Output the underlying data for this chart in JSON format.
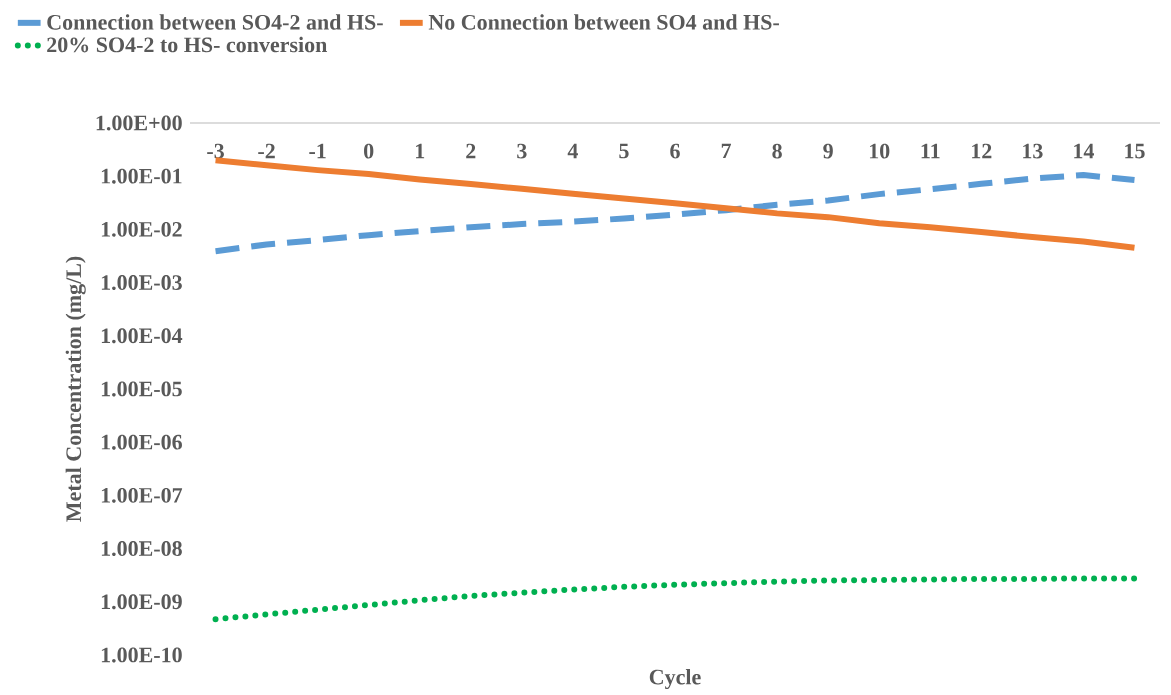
{
  "chart_data": {
    "type": "line",
    "xlabel": "Cycle",
    "ylabel": "Metal Concentration (mg/L)",
    "categories": [
      "-3",
      "-2",
      "-1",
      "0",
      "1",
      "2",
      "3",
      "4",
      "5",
      "6",
      "7",
      "8",
      "9",
      "10",
      "11",
      "12",
      "13",
      "14",
      "15"
    ],
    "log": "y",
    "grid": false,
    "legend": "top",
    "ylim": [
      1e-10,
      1
    ],
    "yticks": [
      {
        "value": 1,
        "label": "1.00E+00"
      },
      {
        "value": 0.1,
        "label": "1.00E-01"
      },
      {
        "value": 0.01,
        "label": "1.00E-02"
      },
      {
        "value": 0.001,
        "label": "1.00E-03"
      },
      {
        "value": 0.0001,
        "label": "1.00E-04"
      },
      {
        "value": 1e-05,
        "label": "1.00E-05"
      },
      {
        "value": 1e-06,
        "label": "1.00E-06"
      },
      {
        "value": 1e-07,
        "label": "1.00E-07"
      },
      {
        "value": 1e-08,
        "label": "1.00E-08"
      },
      {
        "value": 1e-09,
        "label": "1.00E-09"
      },
      {
        "value": 1e-10,
        "label": "1.00E-10"
      }
    ],
    "series": [
      {
        "name": "Connection between SO4-2 and HS-",
        "color": "#5b9bd5",
        "line_style": "dashed",
        "values": [
          0.0039,
          0.0052,
          0.0063,
          0.0078,
          0.0093,
          0.011,
          0.0126,
          0.014,
          0.016,
          0.019,
          0.023,
          0.029,
          0.035,
          0.046,
          0.057,
          0.072,
          0.09,
          0.105,
          0.085
        ]
      },
      {
        "name": "No Connection between SO4 and HS-",
        "color": "#ed7d31",
        "line_style": "solid",
        "values": [
          0.2,
          0.16,
          0.13,
          0.11,
          0.087,
          0.071,
          0.058,
          0.047,
          0.038,
          0.031,
          0.025,
          0.02,
          0.017,
          0.013,
          0.011,
          0.0089,
          0.0072,
          0.0059,
          0.0045
        ]
      },
      {
        "name": "20% SO4-2 to HS- conversion",
        "color": "#00b050",
        "line_style": "dotted",
        "values": [
          4.7e-10,
          5.8e-10,
          7.1e-10,
          8.7e-10,
          1.07e-09,
          1.29e-09,
          1.48e-09,
          1.7e-09,
          1.91e-09,
          2.09e-09,
          2.24e-09,
          2.4e-09,
          2.51e-09,
          2.57e-09,
          2.63e-09,
          2.69e-09,
          2.69e-09,
          2.75e-09,
          2.75e-09
        ]
      }
    ]
  }
}
